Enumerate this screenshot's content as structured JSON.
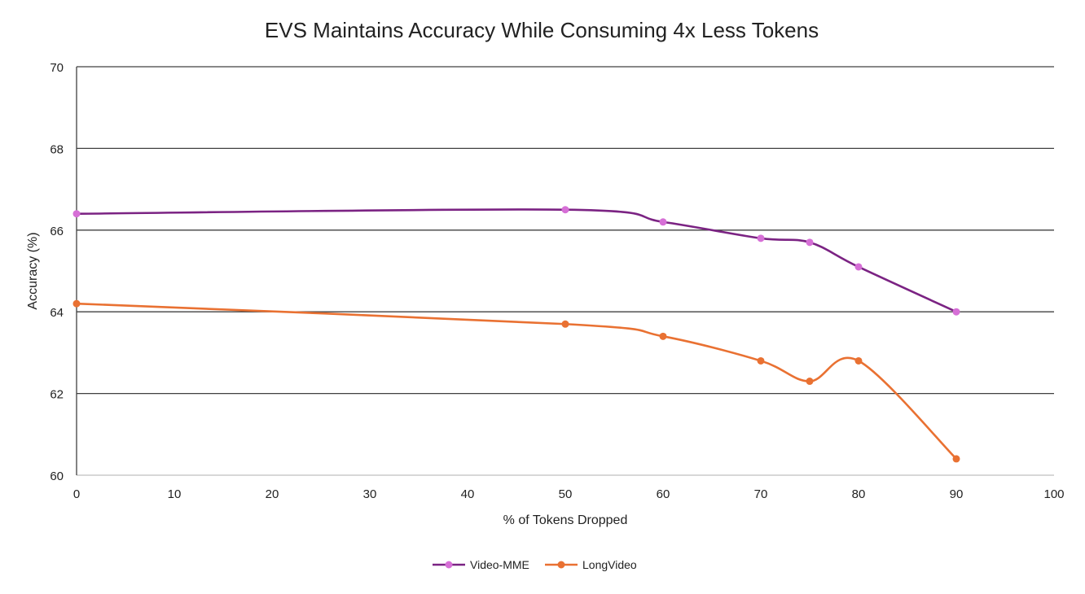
{
  "chart_data": {
    "type": "line",
    "title": "EVS Maintains Accuracy While Consuming 4x Less Tokens",
    "xlabel": "% of Tokens Dropped",
    "ylabel": "Accuracy (%)",
    "xlim": [
      0,
      100
    ],
    "ylim": [
      60,
      70
    ],
    "xticks": [
      "0",
      "10",
      "20",
      "30",
      "40",
      "50",
      "60",
      "70",
      "80",
      "90",
      "100"
    ],
    "yticks": [
      "60",
      "62",
      "64",
      "66",
      "68",
      "70"
    ],
    "grid": "horizontal",
    "legend_position": "bottom",
    "smooth": true,
    "series": [
      {
        "name": "Video-MME",
        "line_color": "#7B2383",
        "marker_color": "#D66FD6",
        "x": [
          0,
          50,
          60,
          70,
          75,
          80,
          90
        ],
        "y": [
          66.4,
          66.5,
          66.2,
          65.8,
          65.7,
          65.1,
          64.0
        ]
      },
      {
        "name": "LongVideo",
        "line_color": "#E97132",
        "marker_color": "#E97132",
        "x": [
          0,
          50,
          60,
          70,
          75,
          80,
          90
        ],
        "y": [
          64.2,
          63.7,
          63.4,
          62.8,
          62.3,
          62.8,
          60.4
        ]
      }
    ]
  }
}
